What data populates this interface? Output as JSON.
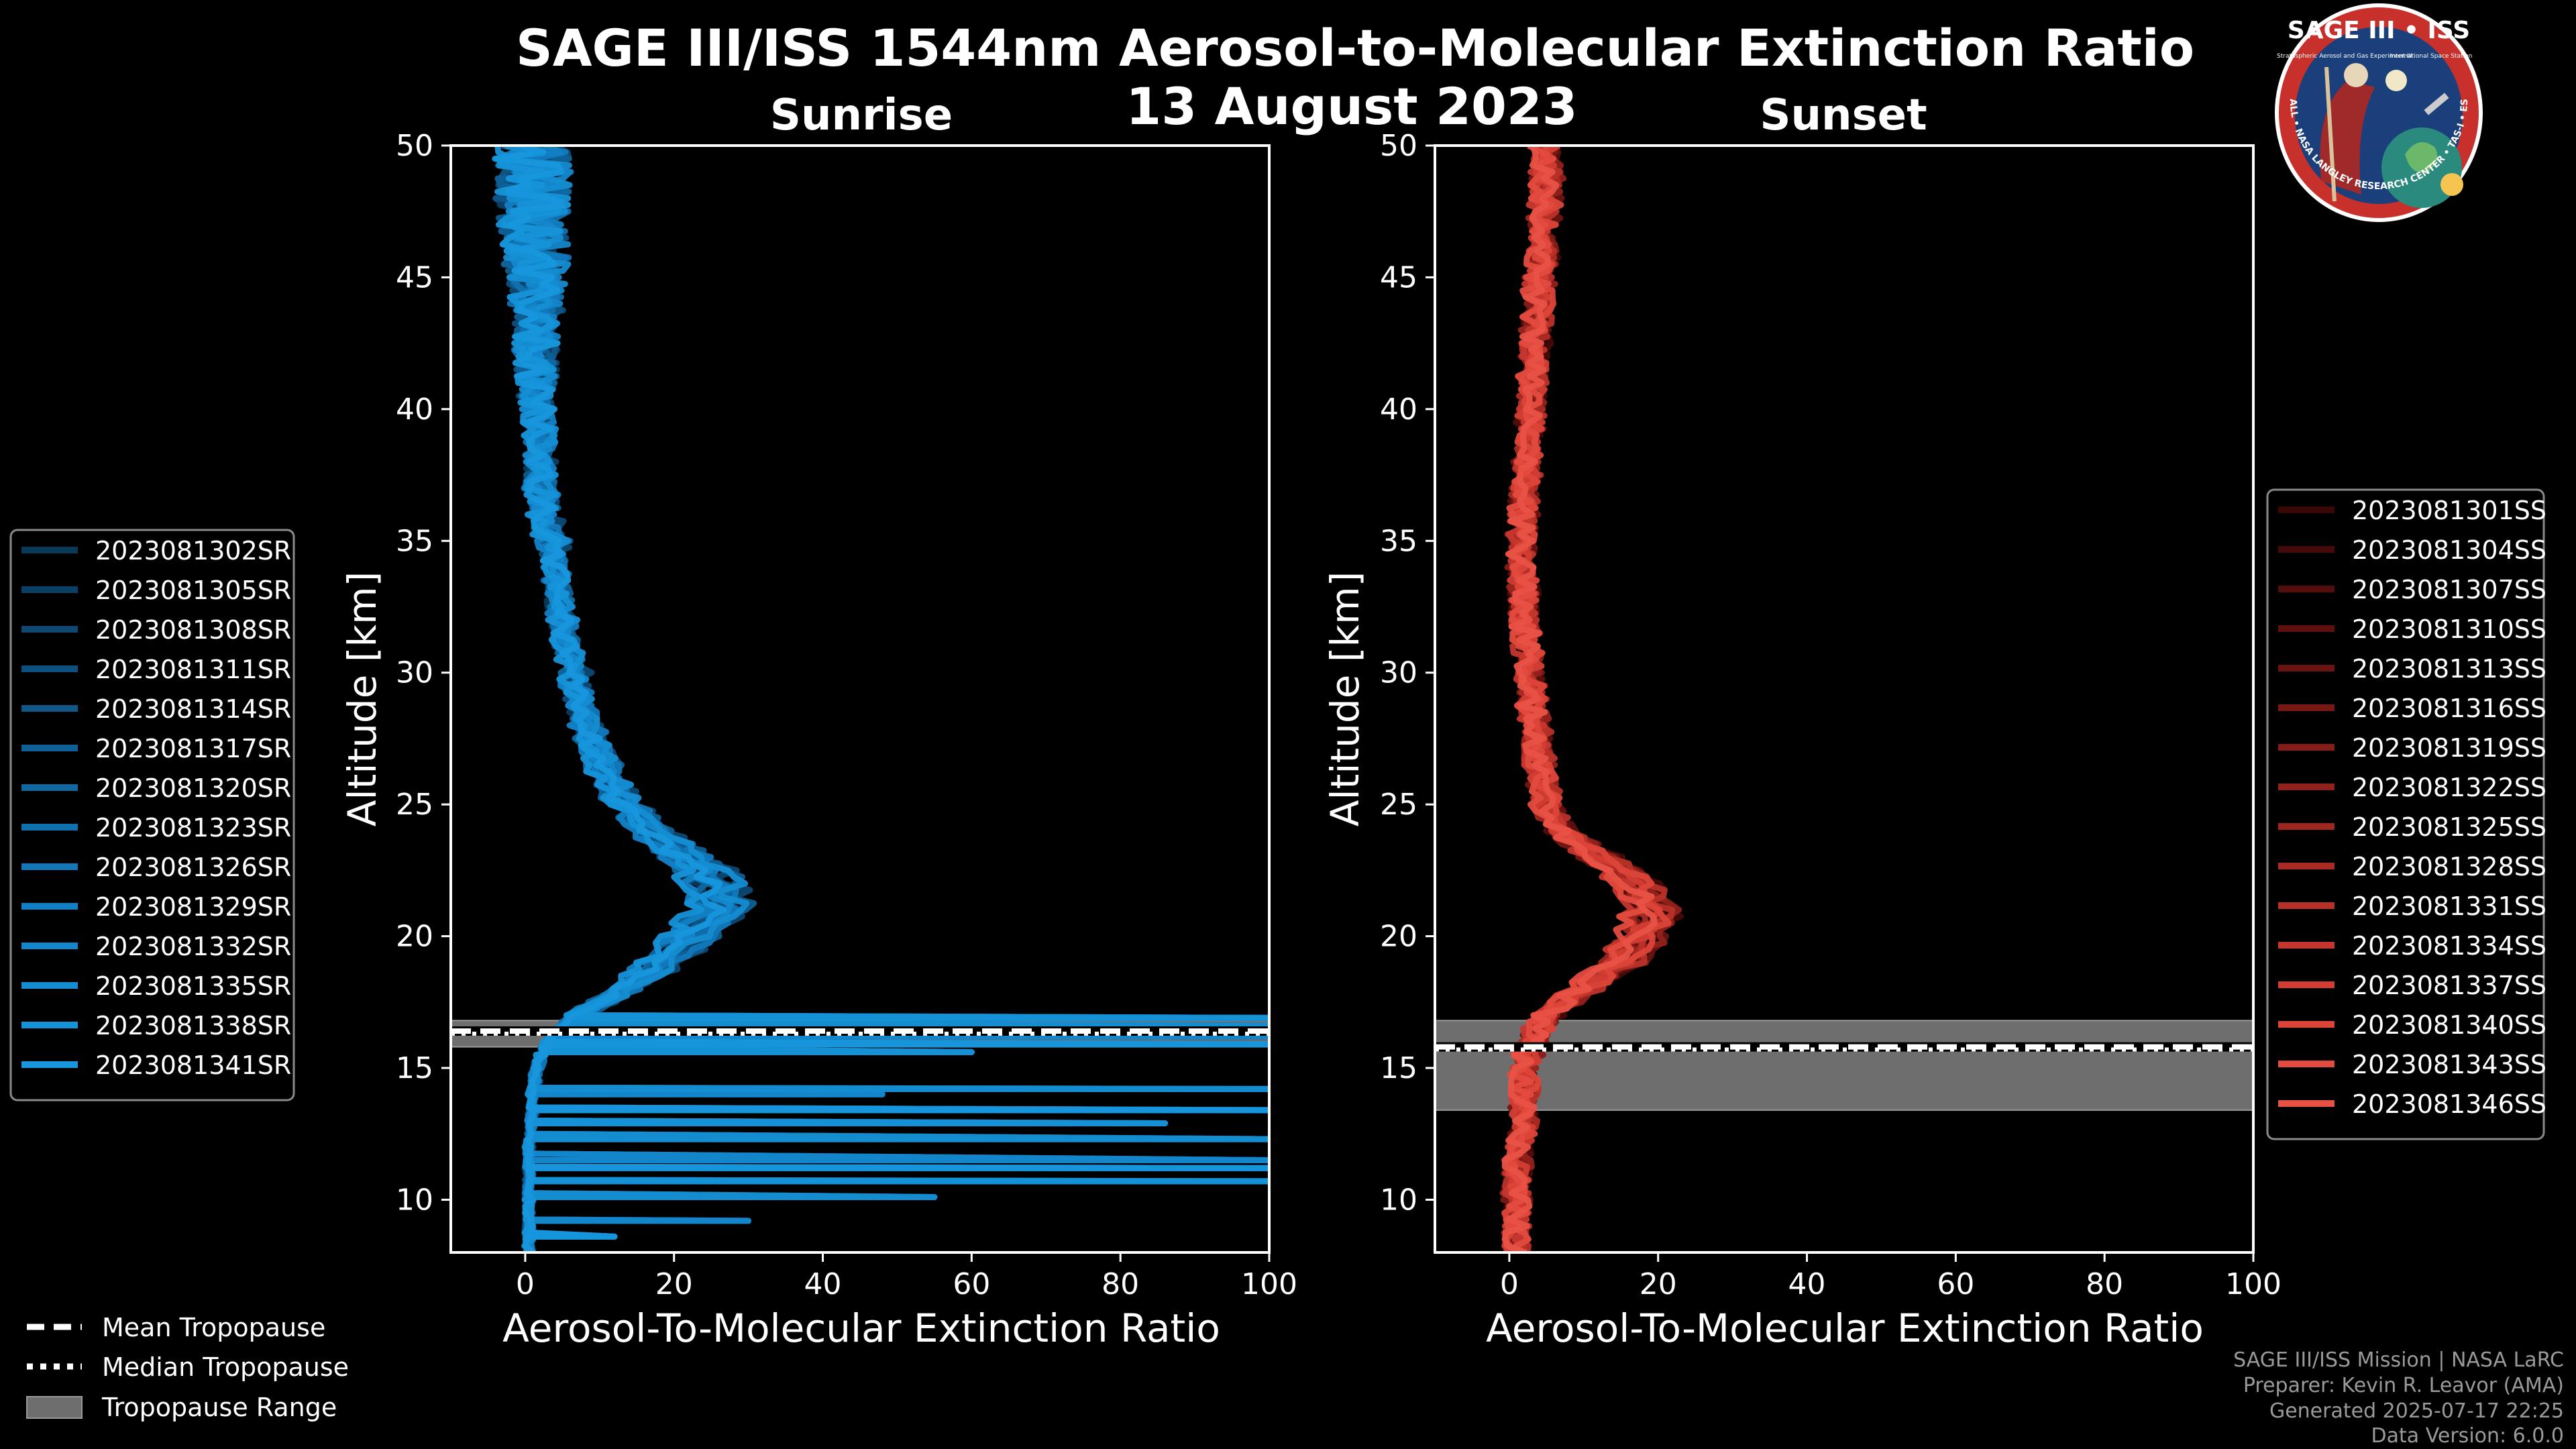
{
  "chart_data": [
    {
      "type": "line",
      "title": "SAGE III/ISS 1544nm Aerosol-to-Molecular Extinction Ratio",
      "date": "13 August 2023",
      "panel_title": "Sunrise",
      "xlabel": "Aerosol-To-Molecular Extinction Ratio",
      "ylabel": "Altitude [km]",
      "xlim": [
        -10,
        100
      ],
      "ylim": [
        8,
        50
      ],
      "xticks": [
        "0",
        "20",
        "40",
        "60",
        "80",
        "100"
      ],
      "yticks": [
        "10",
        "15",
        "20",
        "25",
        "30",
        "35",
        "40",
        "45",
        "50"
      ],
      "legend_position": "left",
      "tropopause": {
        "mean": 16.4,
        "median": 16.3,
        "range": [
          15.8,
          16.8
        ]
      },
      "profile_shape": {
        "altitudes": [
          8,
          9,
          10,
          11,
          12,
          13,
          14,
          15,
          16,
          17,
          18,
          19,
          20,
          21,
          22,
          23,
          24,
          25,
          26,
          27,
          28,
          29,
          30,
          31,
          32,
          33,
          34,
          35,
          36,
          37,
          38,
          39,
          40,
          41,
          42,
          43,
          44,
          45,
          46,
          47,
          48,
          49,
          50
        ],
        "values": [
          0.5,
          0.5,
          0.5,
          0.5,
          0.5,
          0.8,
          1,
          1.5,
          3,
          7,
          13,
          18,
          22,
          26,
          25,
          21,
          17,
          13,
          11,
          9.5,
          8,
          7,
          6.5,
          5.5,
          5,
          4.5,
          4,
          3.5,
          2.5,
          2,
          2,
          2,
          1.5,
          1.5,
          1.5,
          1.5,
          1.5,
          1.5,
          1.5,
          1,
          1,
          1,
          1
        ],
        "scatter": [
          0,
          0,
          0,
          0,
          0,
          0,
          0,
          0,
          0,
          0.5,
          0.5,
          0.8,
          1,
          1.5,
          1.5,
          1.5,
          1.2,
          1,
          1,
          1,
          1,
          1,
          1,
          1,
          1,
          1,
          1,
          1.5,
          1.5,
          1.5,
          1.5,
          1.5,
          2,
          2,
          2.5,
          2.5,
          3,
          3.5,
          4,
          4,
          4.5,
          4.5,
          5
        ]
      },
      "series": [
        {
          "name": "2023081302SR",
          "color": "#0a3a5a"
        },
        {
          "name": "2023081305SR",
          "color": "#0b4066"
        },
        {
          "name": "2023081308SR",
          "color": "#0c4872"
        },
        {
          "name": "2023081311SR",
          "color": "#0d507e"
        },
        {
          "name": "2023081314SR",
          "color": "#0e588a"
        },
        {
          "name": "2023081317SR",
          "color": "#0f6096"
        },
        {
          "name": "2023081320SR",
          "color": "#1068a2"
        },
        {
          "name": "2023081323SR",
          "color": "#1170ae"
        },
        {
          "name": "2023081326SR",
          "color": "#1278ba"
        },
        {
          "name": "2023081329SR",
          "color": "#1380c4"
        },
        {
          "name": "2023081332SR",
          "color": "#1487cc"
        },
        {
          "name": "2023081335SR",
          "color": "#158dd2"
        },
        {
          "name": "2023081338SR",
          "color": "#1692d8"
        },
        {
          "name": "2023081341SR",
          "color": "#1797dd"
        }
      ],
      "spikes": [
        {
          "altitude": 16.9,
          "value": 100
        },
        {
          "altitude": 16.6,
          "value": 100
        },
        {
          "altitude": 16.2,
          "value": 100
        },
        {
          "altitude": 15.9,
          "value": 100
        },
        {
          "altitude": 15.6,
          "value": 60
        },
        {
          "altitude": 14.2,
          "value": 100
        },
        {
          "altitude": 14.0,
          "value": 48
        },
        {
          "altitude": 13.4,
          "value": 100
        },
        {
          "altitude": 12.9,
          "value": 86
        },
        {
          "altitude": 12.3,
          "value": 100
        },
        {
          "altitude": 11.5,
          "value": 100
        },
        {
          "altitude": 11.2,
          "value": 100
        },
        {
          "altitude": 10.7,
          "value": 100
        },
        {
          "altitude": 10.1,
          "value": 55
        },
        {
          "altitude": 9.2,
          "value": 30
        },
        {
          "altitude": 8.6,
          "value": 12
        }
      ]
    },
    {
      "type": "line",
      "panel_title": "Sunset",
      "xlabel": "Aerosol-To-Molecular Extinction Ratio",
      "ylabel": "Altitude [km]",
      "xlim": [
        -10,
        100
      ],
      "ylim": [
        8,
        50
      ],
      "xticks": [
        "0",
        "20",
        "40",
        "60",
        "80",
        "100"
      ],
      "yticks": [
        "10",
        "15",
        "20",
        "25",
        "30",
        "35",
        "40",
        "45",
        "50"
      ],
      "legend_position": "right",
      "tropopause": {
        "mean": 15.8,
        "median": 15.7,
        "range": [
          13.4,
          16.8
        ]
      },
      "profile_shape": {
        "altitudes": [
          8,
          9,
          10,
          11,
          12,
          13,
          14,
          15,
          16,
          17,
          18,
          19,
          20,
          21,
          22,
          23,
          24,
          25,
          26,
          27,
          28,
          29,
          30,
          31,
          32,
          33,
          34,
          35,
          36,
          37,
          38,
          39,
          40,
          41,
          42,
          43,
          44,
          45,
          46,
          47,
          48,
          49,
          50
        ],
        "values": [
          1,
          1,
          1,
          1,
          1.5,
          2,
          2,
          2,
          3,
          5,
          10,
          15,
          18,
          19,
          17,
          12,
          7,
          5,
          4.5,
          4,
          3.5,
          3,
          3,
          2.5,
          2,
          2,
          1.5,
          1.5,
          2,
          2,
          2.5,
          2.5,
          3,
          3,
          3.5,
          3.5,
          4,
          4,
          4.5,
          4.5,
          5,
          5,
          5
        ]
      },
      "series": [
        {
          "name": "2023081301SS",
          "color": "#3a0707"
        },
        {
          "name": "2023081304SS",
          "color": "#460a0a"
        },
        {
          "name": "2023081307SS",
          "color": "#520d0c"
        },
        {
          "name": "2023081310SS",
          "color": "#5e100e"
        },
        {
          "name": "2023081313SS",
          "color": "#6a1411"
        },
        {
          "name": "2023081316SS",
          "color": "#771814"
        },
        {
          "name": "2023081319SS",
          "color": "#841c17"
        },
        {
          "name": "2023081322SS",
          "color": "#91211b"
        },
        {
          "name": "2023081325SS",
          "color": "#9e261f"
        },
        {
          "name": "2023081328SS",
          "color": "#ab2b24"
        },
        {
          "name": "2023081331SS",
          "color": "#b83129"
        },
        {
          "name": "2023081334SS",
          "color": "#c5372e"
        },
        {
          "name": "2023081337SS",
          "color": "#d23d33"
        },
        {
          "name": "2023081340SS",
          "color": "#dc4438"
        },
        {
          "name": "2023081343SS",
          "color": "#e34b3e"
        },
        {
          "name": "2023081346SS",
          "color": "#e85244"
        }
      ],
      "spikes": []
    }
  ],
  "tropopause_legend": {
    "mean": "Mean Tropopause",
    "median": "Median Tropopause",
    "range": "Tropopause Range"
  },
  "footer": {
    "line1": "SAGE III/ISS Mission | NASA LaRC",
    "line2": "Preparer: Kevin R. Leavor (AMA)",
    "line3": "Generated 2025-07-17 22:25",
    "line4": "Data Version: 6.0.0"
  },
  "logo": {
    "title": "SAGE III • ISS",
    "ring_text": "BALL • NASA LANGLEY RESEARCH CENTER • TAS-I • ESA",
    "sub_left": "Stratospheric Aerosol and Gas Experiment III",
    "sub_right": "International Space Station"
  },
  "colors": {
    "background": "#000000",
    "sunrise": "#1797dd",
    "sunset": "#e85244",
    "tropopause_range": "#6e6e6e",
    "logo_blue": "#1b3f7a",
    "logo_red": "#c8302c"
  }
}
